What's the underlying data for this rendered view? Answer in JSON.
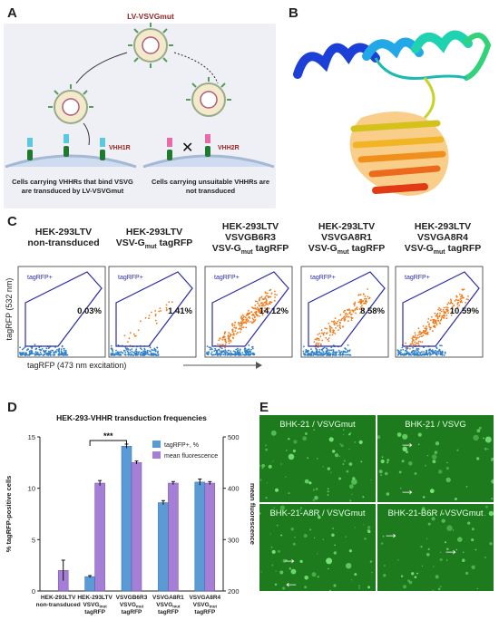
{
  "panels": {
    "A": "A",
    "B": "B",
    "C": "C",
    "D": "D",
    "E": "E"
  },
  "panel_a": {
    "virus_label": "LV-VSVGmut",
    "receptor_left": "VHH1R",
    "receptor_right": "VHH2R",
    "caption_left": "Cells carrying VHHRs that bind VSVG are  transduced by LV-VSVGmut",
    "caption_right": "Cells carrying unsuitable VHHRs are not transduced"
  },
  "panel_c": {
    "columns": [
      {
        "title_l1": "HEK-293LTV",
        "title_l2": "non-transduced",
        "title_l3": "",
        "gate": "tagRFP+",
        "pct": "0.03%"
      },
      {
        "title_l1": "HEK-293LTV",
        "title_l2": "VSV-G",
        "title_l2_sub": "mut",
        "title_l2_tail": " tagRFP",
        "title_l3": "",
        "gate": "tagRFP+",
        "pct": "1.41%"
      },
      {
        "title_l1": "HEK-293LTV",
        "title_l2": "VSVGB6R3",
        "title_l3": "VSV-G",
        "title_l3_sub": "mut",
        "title_l3_tail": " tagRFP",
        "gate": "tagRFP+",
        "pct": "14.12%"
      },
      {
        "title_l1": "HEK-293LTV",
        "title_l2": "VSVGA8R1",
        "title_l3": "VSV-G",
        "title_l3_sub": "mut",
        "title_l3_tail": " tagRFP",
        "gate": "tagRFP+",
        "pct": "8.58%"
      },
      {
        "title_l1": "HEK-293LTV",
        "title_l2": "VSVGA8R4",
        "title_l3": "VSV-G",
        "title_l3_sub": "mut",
        "title_l3_tail": " tagRFP",
        "gate": "tagRFP+",
        "pct": "10.59%"
      }
    ],
    "ylabel": "tagRFP (532 nm)",
    "xlabel": "tagRFP (473 nm excitation)",
    "density": [
      0.0,
      0.04,
      0.35,
      0.22,
      0.28
    ]
  },
  "chart_data": {
    "type": "bar",
    "title": "HEK-293-VHHR transduction frequencies",
    "ylabel": "% tagRFP-positive cells",
    "y2label": "mean fluorescence",
    "ylim": [
      0,
      15
    ],
    "y2lim": [
      200,
      500
    ],
    "yticks": [
      "0",
      "5",
      "10",
      "15"
    ],
    "y2ticks": [
      "200",
      "300",
      "400",
      "500"
    ],
    "categories": [
      {
        "l1": "HEK-293LTV",
        "l2": "non-transduced",
        "l3": ""
      },
      {
        "l1": "HEK-293LTV",
        "l2": "VSVG",
        "l2_sub": "mut",
        "l3": "tagRFP"
      },
      {
        "l1": "VSVGB6R3",
        "l2": "VSVG",
        "l2_sub": "mut",
        "l3": "tagRFP"
      },
      {
        "l1": "VSVGA8R1",
        "l2": "VSVG",
        "l2_sub": "mut",
        "l3": "tagRFP"
      },
      {
        "l1": "VSVGA8R4",
        "l2": "VSVG",
        "l2_sub": "mut",
        "l3": "tagRFP"
      }
    ],
    "series": [
      {
        "name": "tagRFP+, %",
        "axis": "left",
        "color": "#5b9bd5",
        "values": [
          0.0,
          1.4,
          14.1,
          8.6,
          10.6
        ],
        "errors": [
          0.0,
          0.1,
          0.2,
          0.2,
          0.3
        ]
      },
      {
        "name": "mean fluorescence",
        "axis": "right",
        "color": "#a57fd6",
        "values": [
          240,
          410,
          450,
          410,
          410
        ],
        "errors": [
          20,
          5,
          3,
          3,
          3
        ]
      }
    ],
    "significance": "***",
    "legend": "top-right"
  },
  "panel_e": {
    "images": [
      {
        "caption": "BHK-21 / VSVGmut",
        "arrows": []
      },
      {
        "caption": "BHK-21 / VSVG",
        "arrows": [
          "→",
          "→"
        ]
      },
      {
        "caption": "BHK-21-A8R / VSVGmut",
        "arrows": [
          "→",
          "←"
        ]
      },
      {
        "caption": "BHK-21-B6R / VSVGmut",
        "arrows": [
          "→",
          "→"
        ]
      }
    ]
  }
}
